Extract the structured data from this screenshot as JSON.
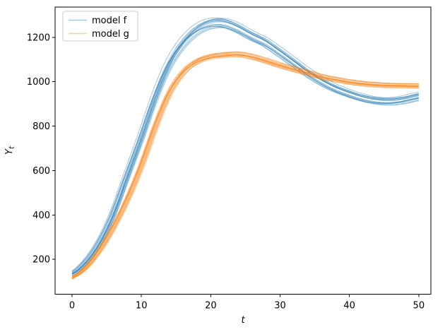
{
  "chart_data": {
    "type": "line",
    "title": "",
    "xlabel": "t",
    "ylabel": "Y_t",
    "ylabel_base": "Y",
    "ylabel_sub": "t",
    "x_ticks": [
      0,
      10,
      20,
      30,
      40,
      50
    ],
    "y_ticks": [
      200,
      400,
      600,
      800,
      1000,
      1200
    ],
    "xlim": [
      -2.45,
      51.75
    ],
    "ylim": [
      42.9,
      1336.5
    ],
    "grid": false,
    "legend": {
      "position": "upper-left",
      "entries": [
        {
          "label": "model f",
          "color": "#1f77b4"
        },
        {
          "label": "model g",
          "color": "#ff7f0e"
        }
      ]
    },
    "x": [
      0,
      2,
      4,
      6,
      8,
      10,
      12,
      14,
      16,
      18,
      20,
      22,
      24,
      26,
      28,
      30,
      32,
      34,
      36,
      38,
      40,
      42,
      44,
      46,
      48,
      50
    ],
    "series": [
      {
        "name": "model f",
        "color": "#1f77b4",
        "alpha": 0.4,
        "n_lines": 15,
        "time_jitter": 0.65,
        "scale_jitter": 0.017,
        "offset_jitter": 5,
        "y": [
          135,
          185,
          272,
          400,
          570,
          740,
          920,
          1070,
          1170,
          1232,
          1262,
          1265,
          1242,
          1208,
          1178,
          1135,
          1090,
          1044,
          1004,
          972,
          948,
          928,
          916,
          913,
          920,
          934
        ]
      },
      {
        "name": "model g",
        "color": "#ff7f0e",
        "alpha": 0.4,
        "n_lines": 15,
        "time_jitter": 0.5,
        "scale_jitter": 0.011,
        "offset_jitter": 4,
        "y": [
          118,
          162,
          240,
          345,
          470,
          620,
          795,
          945,
          1040,
          1090,
          1112,
          1120,
          1123,
          1112,
          1094,
          1074,
          1056,
          1040,
          1022,
          1010,
          999,
          991,
          986,
          983,
          982,
          981
        ]
      }
    ]
  }
}
